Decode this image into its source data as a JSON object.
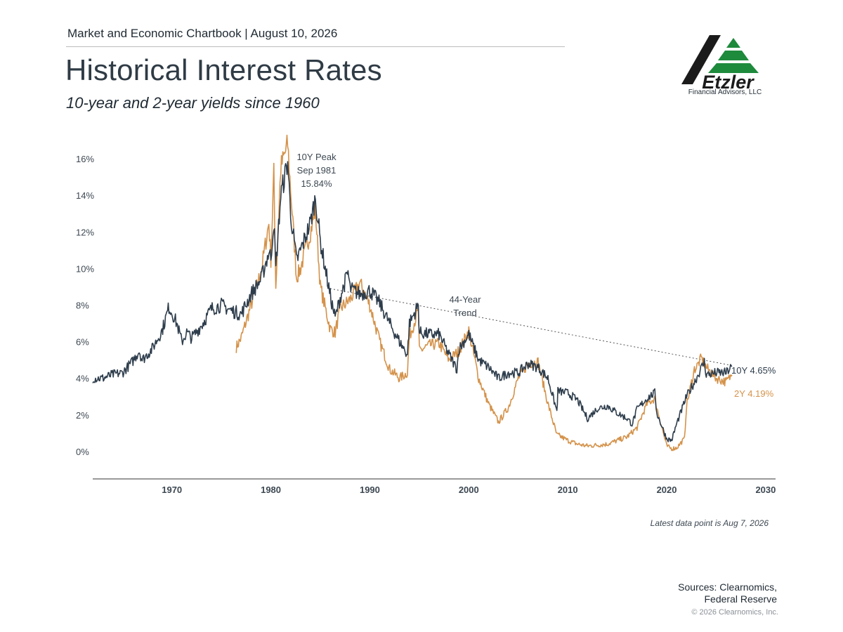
{
  "header": {
    "kicker": "Market and Economic Chartbook | August 10, 2026",
    "title": "Historical Interest Rates",
    "subtitle": "10-year and 2-year yields since 1960"
  },
  "logo": {
    "wordmark": "Etzler",
    "caption": "Financial Advisors, LLC",
    "colors": {
      "slash": "#1b1b1b",
      "triangle": "#1e8a3c"
    }
  },
  "chart_data": {
    "type": "line",
    "x_unit": "year",
    "xlim": [
      1962,
      2031
    ],
    "ylim": [
      -1.5,
      17
    ],
    "y_ticks": [
      0,
      2,
      4,
      6,
      8,
      10,
      12,
      14,
      16
    ],
    "y_tick_labels": [
      "0%",
      "2%",
      "4%",
      "6%",
      "8%",
      "10%",
      "12%",
      "14%",
      "16%"
    ],
    "x_ticks": [
      1970,
      1980,
      1990,
      2000,
      2010,
      2020,
      2030
    ],
    "x_tick_labels": [
      "1970",
      "1980",
      "1990",
      "2000",
      "2010",
      "2020",
      "2030"
    ],
    "grid": false,
    "series": [
      {
        "color": "#2e3d4c",
        "x": [
          1962,
          1963,
          1964,
          1965,
          1966,
          1966.7,
          1967,
          1968,
          1969,
          1969.7,
          1970,
          1970.5,
          1971,
          1971.5,
          1972,
          1973,
          1974,
          1975,
          1976,
          1977,
          1978,
          1979,
          1979.8,
          1980,
          1980.3,
          1980.5,
          1981,
          1981.7,
          1982,
          1982.6,
          1983,
          1984,
          1984.5,
          1985,
          1986,
          1986.5,
          1987,
          1987.8,
          1988,
          1989,
          1990,
          1991,
          1992,
          1993,
          1993.8,
          1994,
          1994.9,
          1995,
          1996,
          1997,
          1998,
          1998.8,
          1999,
          2000,
          2001,
          2002,
          2003,
          2004,
          2005,
          2006,
          2007,
          2008,
          2008.9,
          2009,
          2010,
          2011,
          2012,
          2013,
          2014,
          2015,
          2016,
          2016.5,
          2017,
          2018,
          2018.8,
          2019,
          2020,
          2020.5,
          2021,
          2022,
          2023,
          2023.8,
          2024,
          2025,
          2026,
          2026.6
        ],
        "y": [
          4.0,
          4.0,
          4.2,
          4.3,
          4.9,
          5.5,
          5.0,
          5.6,
          6.6,
          7.9,
          7.6,
          7.0,
          6.0,
          6.5,
          6.2,
          6.9,
          7.8,
          8.0,
          7.7,
          7.5,
          8.6,
          9.4,
          10.9,
          10.6,
          12.6,
          10.0,
          14.0,
          15.84,
          13.0,
          10.4,
          11.0,
          12.5,
          13.9,
          11.5,
          8.5,
          7.3,
          8.4,
          9.8,
          8.9,
          8.6,
          8.8,
          8.1,
          7.0,
          6.0,
          5.3,
          7.0,
          8.0,
          6.5,
          6.4,
          6.4,
          5.3,
          4.5,
          5.6,
          6.4,
          5.0,
          4.6,
          4.0,
          4.3,
          4.3,
          4.8,
          4.6,
          4.0,
          2.2,
          3.3,
          3.2,
          2.8,
          1.8,
          2.35,
          2.5,
          2.1,
          1.8,
          1.5,
          2.3,
          2.9,
          3.2,
          2.1,
          0.7,
          0.6,
          1.5,
          3.0,
          4.0,
          4.9,
          4.2,
          4.3,
          4.3,
          4.65
        ]
      },
      {
        "color": "#d4924a",
        "x": [
          1976.5,
          1977,
          1978,
          1979,
          1979.8,
          1980,
          1980.3,
          1980.5,
          1981,
          1981.7,
          1982,
          1982.6,
          1983,
          1984,
          1984.5,
          1985,
          1986,
          1986.5,
          1987,
          1988,
          1989,
          1990,
          1991,
          1992,
          1993,
          1993.8,
          1994,
          1994.9,
          1995,
          1996,
          1997,
          1998,
          1999,
          2000,
          2001,
          2002,
          2003,
          2004,
          2005,
          2006,
          2007,
          2008,
          2008.9,
          2009,
          2010,
          2011,
          2012,
          2013,
          2014,
          2015,
          2016,
          2017,
          2018,
          2018.8,
          2019,
          2020,
          2020.5,
          2021,
          2021.8,
          2022,
          2022.8,
          2023,
          2023.5,
          2024,
          2025,
          2026,
          2026.6
        ],
        "y": [
          5.7,
          6.2,
          8.0,
          9.8,
          12.5,
          10.5,
          15.2,
          9.0,
          15.5,
          16.8,
          14.3,
          9.5,
          10.0,
          12.0,
          13.2,
          9.0,
          6.7,
          6.5,
          7.8,
          8.3,
          9.2,
          8.0,
          6.0,
          4.5,
          4.0,
          4.3,
          6.3,
          7.7,
          5.5,
          5.8,
          5.9,
          5.0,
          5.5,
          6.6,
          4.0,
          2.6,
          1.6,
          2.4,
          4.0,
          4.8,
          4.9,
          2.6,
          0.9,
          0.9,
          0.6,
          0.4,
          0.3,
          0.35,
          0.4,
          0.6,
          0.8,
          1.3,
          2.6,
          2.9,
          2.4,
          0.3,
          0.15,
          0.2,
          0.7,
          2.5,
          4.5,
          4.6,
          5.1,
          4.6,
          4.0,
          3.8,
          4.19
        ]
      }
    ],
    "annotations": {
      "peak": {
        "x": 1981.7,
        "y": 15.84,
        "lines": [
          "10Y Peak",
          "Sep 1981",
          "15.84%"
        ]
      },
      "trend": {
        "x": [
          1986,
          2026.6
        ],
        "y": [
          8.9,
          4.7
        ],
        "lines": [
          "44-Year",
          "Trend"
        ]
      },
      "end_label_10y": "10Y 4.65%",
      "end_label_2y": "2Y 4.19%"
    }
  },
  "footer": {
    "latest_note": "Latest data point is Aug 7, 2026",
    "sources_line1": "Sources: Clearnomics,",
    "sources_line2": "Federal Reserve",
    "copyright": "© 2026 Clearnomics, Inc."
  }
}
